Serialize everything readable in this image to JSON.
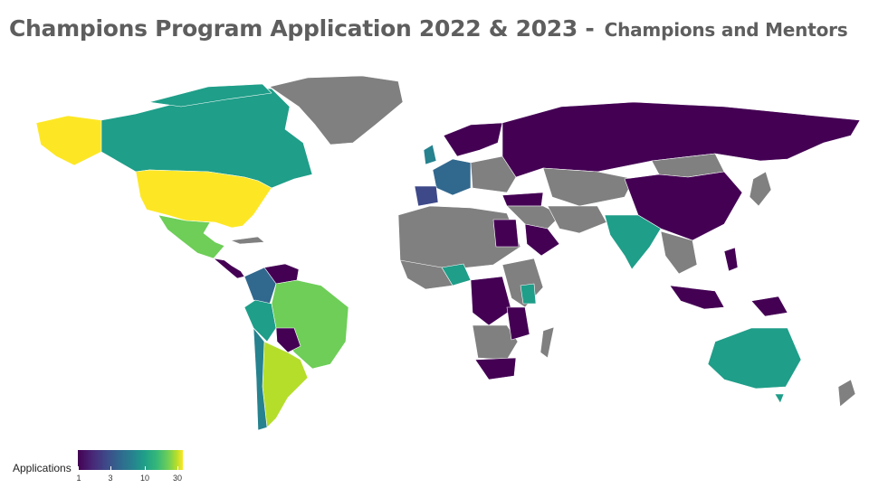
{
  "title": {
    "main": "Champions Program Application 2022 & 2023 -",
    "sub": "Champions and Mentors"
  },
  "legend": {
    "title": "Applications",
    "ticks": [
      "1",
      "3",
      "10",
      "30"
    ]
  },
  "map_data": {
    "projection": "world equirectangular (choropleth)",
    "no_data_color": "#808080",
    "scale_colors": [
      "#440154",
      "#3e4989",
      "#26828e",
      "#35b779",
      "#b5de2b",
      "#fde725"
    ],
    "regions": [
      {
        "name": "United States",
        "level": "30+"
      },
      {
        "name": "Alaska",
        "level": "30+"
      },
      {
        "name": "Canada",
        "level": "~10"
      },
      {
        "name": "Mexico",
        "level": "~20"
      },
      {
        "name": "Brazil",
        "level": "~20"
      },
      {
        "name": "Argentina",
        "level": "~30"
      },
      {
        "name": "Australia",
        "level": "~10"
      },
      {
        "name": "India",
        "level": "~10"
      },
      {
        "name": "Nigeria",
        "level": "~10"
      },
      {
        "name": "Kenya",
        "level": "~10"
      },
      {
        "name": "Spain",
        "level": "~3"
      },
      {
        "name": "Russia",
        "level": "1"
      },
      {
        "name": "China",
        "level": "1"
      },
      {
        "name": "South Africa",
        "level": "1"
      }
    ]
  }
}
